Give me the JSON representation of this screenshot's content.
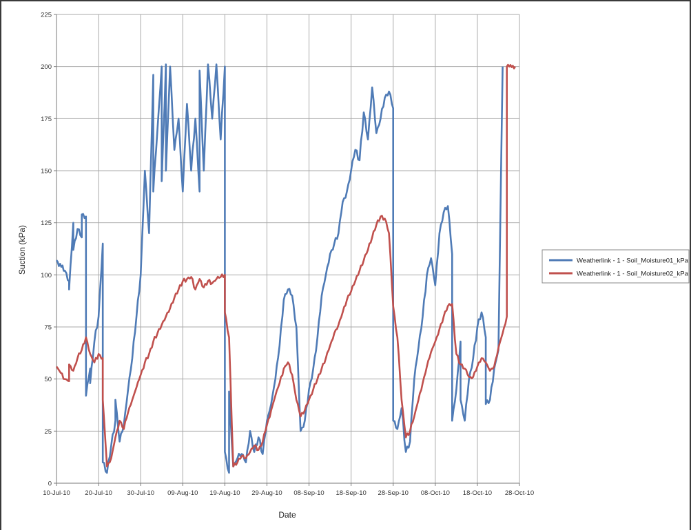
{
  "chart_data": {
    "type": "line",
    "xlabel": "Date",
    "ylabel": "Suction (kPa)",
    "x_ticks": [
      "10-Jul-10",
      "20-Jul-10",
      "30-Jul-10",
      "09-Aug-10",
      "19-Aug-10",
      "29-Aug-10",
      "08-Sep-10",
      "18-Sep-10",
      "28-Sep-10",
      "08-Oct-10",
      "18-Oct-10",
      "28-Oct-10"
    ],
    "xlim": [
      "2010-07-10",
      "2010-10-28"
    ],
    "y_ticks": [
      0,
      25,
      50,
      75,
      100,
      125,
      150,
      175,
      200,
      225
    ],
    "ylim": [
      0,
      225
    ],
    "grid": true,
    "legend_position": "right",
    "colors": {
      "series1": "#4f7bb6",
      "series2": "#c0504d",
      "grid": "#a8a8a8",
      "axis": "#7a7a7a"
    },
    "series": [
      {
        "name": "Weatherlink - 1 - Soil_Moisture01_kPa",
        "points": [
          [
            "2010-07-10",
            107
          ],
          [
            "2010-07-12",
            102
          ],
          [
            "2010-07-13",
            97
          ],
          [
            "2010-07-13",
            93
          ],
          [
            "2010-07-14",
            125
          ],
          [
            "2010-07-14",
            112
          ],
          [
            "2010-07-15",
            122
          ],
          [
            "2010-07-16",
            118
          ],
          [
            "2010-07-16",
            129
          ],
          [
            "2010-07-17",
            128
          ],
          [
            "2010-07-17",
            42
          ],
          [
            "2010-07-18",
            55
          ],
          [
            "2010-07-18",
            48
          ],
          [
            "2010-07-19",
            68
          ],
          [
            "2010-07-20",
            80
          ],
          [
            "2010-07-21",
            115
          ],
          [
            "2010-07-21",
            10
          ],
          [
            "2010-07-22",
            5
          ],
          [
            "2010-07-23",
            18
          ],
          [
            "2010-07-24",
            30
          ],
          [
            "2010-07-24",
            40
          ],
          [
            "2010-07-25",
            20
          ],
          [
            "2010-07-26",
            28
          ],
          [
            "2010-07-27",
            45
          ],
          [
            "2010-07-28",
            60
          ],
          [
            "2010-07-29",
            80
          ],
          [
            "2010-07-30",
            100
          ],
          [
            "2010-07-31",
            150
          ],
          [
            "2010-08-01",
            120
          ],
          [
            "2010-08-02",
            196
          ],
          [
            "2010-08-02",
            140
          ],
          [
            "2010-08-03",
            170
          ],
          [
            "2010-08-04",
            200
          ],
          [
            "2010-08-04",
            145
          ],
          [
            "2010-08-05",
            201
          ],
          [
            "2010-08-05",
            150
          ],
          [
            "2010-08-06",
            200
          ],
          [
            "2010-08-07",
            160
          ],
          [
            "2010-08-08",
            175
          ],
          [
            "2010-08-09",
            140
          ],
          [
            "2010-08-10",
            182
          ],
          [
            "2010-08-11",
            150
          ],
          [
            "2010-08-12",
            175
          ],
          [
            "2010-08-13",
            140
          ],
          [
            "2010-08-13",
            198
          ],
          [
            "2010-08-14",
            150
          ],
          [
            "2010-08-15",
            201
          ],
          [
            "2010-08-16",
            175
          ],
          [
            "2010-08-17",
            201
          ],
          [
            "2010-08-18",
            165
          ],
          [
            "2010-08-19",
            200
          ],
          [
            "2010-08-19",
            15
          ],
          [
            "2010-08-20",
            5
          ],
          [
            "2010-08-20",
            44
          ],
          [
            "2010-08-21",
            8
          ],
          [
            "2010-08-22",
            12
          ],
          [
            "2010-08-23",
            14
          ],
          [
            "2010-08-24",
            10
          ],
          [
            "2010-08-25",
            25
          ],
          [
            "2010-08-26",
            15
          ],
          [
            "2010-08-27",
            22
          ],
          [
            "2010-08-28",
            14
          ],
          [
            "2010-08-29",
            30
          ],
          [
            "2010-08-30",
            38
          ],
          [
            "2010-08-31",
            50
          ],
          [
            "2010-09-01",
            66
          ],
          [
            "2010-09-02",
            88
          ],
          [
            "2010-09-03",
            93
          ],
          [
            "2010-09-04",
            90
          ],
          [
            "2010-09-05",
            75
          ],
          [
            "2010-09-06",
            25
          ],
          [
            "2010-09-07",
            30
          ],
          [
            "2010-09-08",
            45
          ],
          [
            "2010-09-09",
            55
          ],
          [
            "2010-09-10",
            70
          ],
          [
            "2010-09-11",
            90
          ],
          [
            "2010-09-12",
            100
          ],
          [
            "2010-09-13",
            110
          ],
          [
            "2010-09-14",
            115
          ],
          [
            "2010-09-15",
            120
          ],
          [
            "2010-09-16",
            135
          ],
          [
            "2010-09-17",
            140
          ],
          [
            "2010-09-18",
            150
          ],
          [
            "2010-09-19",
            160
          ],
          [
            "2010-09-20",
            155
          ],
          [
            "2010-09-21",
            178
          ],
          [
            "2010-09-22",
            165
          ],
          [
            "2010-09-23",
            190
          ],
          [
            "2010-09-24",
            168
          ],
          [
            "2010-09-25",
            175
          ],
          [
            "2010-09-26",
            185
          ],
          [
            "2010-09-27",
            188
          ],
          [
            "2010-09-28",
            180
          ],
          [
            "2010-09-28",
            30
          ],
          [
            "2010-09-29",
            26
          ],
          [
            "2010-09-30",
            36
          ],
          [
            "2010-10-01",
            15
          ],
          [
            "2010-10-02",
            20
          ],
          [
            "2010-10-03",
            50
          ],
          [
            "2010-10-04",
            65
          ],
          [
            "2010-10-05",
            80
          ],
          [
            "2010-10-06",
            100
          ],
          [
            "2010-10-07",
            108
          ],
          [
            "2010-10-08",
            95
          ],
          [
            "2010-10-09",
            120
          ],
          [
            "2010-10-10",
            130
          ],
          [
            "2010-10-11",
            133
          ],
          [
            "2010-10-12",
            110
          ],
          [
            "2010-10-12",
            30
          ],
          [
            "2010-10-13",
            45
          ],
          [
            "2010-10-14",
            68
          ],
          [
            "2010-10-14",
            40
          ],
          [
            "2010-10-15",
            30
          ],
          [
            "2010-10-16",
            50
          ],
          [
            "2010-10-17",
            60
          ],
          [
            "2010-10-18",
            75
          ],
          [
            "2010-10-19",
            82
          ],
          [
            "2010-10-20",
            70
          ],
          [
            "2010-10-20",
            38
          ],
          [
            "2010-10-21",
            40
          ],
          [
            "2010-10-22",
            55
          ],
          [
            "2010-10-23",
            64
          ],
          [
            "2010-10-24",
            200
          ],
          [
            "2010-10-24",
            200
          ]
        ]
      },
      {
        "name": "Weatherlink - 1 - Soil_Moisture02_kPa",
        "points": [
          [
            "2010-07-10",
            56
          ],
          [
            "2010-07-11",
            53
          ],
          [
            "2010-07-12",
            50
          ],
          [
            "2010-07-13",
            49
          ],
          [
            "2010-07-13",
            57
          ],
          [
            "2010-07-14",
            54
          ],
          [
            "2010-07-15",
            60
          ],
          [
            "2010-07-16",
            64
          ],
          [
            "2010-07-17",
            70
          ],
          [
            "2010-07-18",
            62
          ],
          [
            "2010-07-19",
            58
          ],
          [
            "2010-07-20",
            62
          ],
          [
            "2010-07-21",
            60
          ],
          [
            "2010-07-21",
            40
          ],
          [
            "2010-07-22",
            8
          ],
          [
            "2010-07-23",
            12
          ],
          [
            "2010-07-24",
            22
          ],
          [
            "2010-07-25",
            30
          ],
          [
            "2010-07-26",
            26
          ],
          [
            "2010-07-27",
            34
          ],
          [
            "2010-07-28",
            40
          ],
          [
            "2010-07-29",
            46
          ],
          [
            "2010-07-30",
            52
          ],
          [
            "2010-07-31",
            58
          ],
          [
            "2010-08-01",
            62
          ],
          [
            "2010-08-02",
            68
          ],
          [
            "2010-08-03",
            72
          ],
          [
            "2010-08-04",
            76
          ],
          [
            "2010-08-05",
            80
          ],
          [
            "2010-08-06",
            84
          ],
          [
            "2010-08-07",
            89
          ],
          [
            "2010-08-08",
            93
          ],
          [
            "2010-08-09",
            97
          ],
          [
            "2010-08-10",
            98
          ],
          [
            "2010-08-11",
            99
          ],
          [
            "2010-08-12",
            93
          ],
          [
            "2010-08-13",
            98
          ],
          [
            "2010-08-14",
            94
          ],
          [
            "2010-08-15",
            97
          ],
          [
            "2010-08-16",
            96
          ],
          [
            "2010-08-17",
            98
          ],
          [
            "2010-08-18",
            99
          ],
          [
            "2010-08-19",
            100
          ],
          [
            "2010-08-19",
            82
          ],
          [
            "2010-08-20",
            70
          ],
          [
            "2010-08-21",
            8
          ],
          [
            "2010-08-22",
            10
          ],
          [
            "2010-08-23",
            13
          ],
          [
            "2010-08-24",
            12
          ],
          [
            "2010-08-25",
            15
          ],
          [
            "2010-08-26",
            18
          ],
          [
            "2010-08-27",
            16
          ],
          [
            "2010-08-28",
            20
          ],
          [
            "2010-08-29",
            28
          ],
          [
            "2010-08-30",
            35
          ],
          [
            "2010-08-31",
            42
          ],
          [
            "2010-09-01",
            48
          ],
          [
            "2010-09-02",
            55
          ],
          [
            "2010-09-03",
            58
          ],
          [
            "2010-09-04",
            52
          ],
          [
            "2010-09-05",
            40
          ],
          [
            "2010-09-06",
            32
          ],
          [
            "2010-09-07",
            35
          ],
          [
            "2010-09-08",
            40
          ],
          [
            "2010-09-09",
            45
          ],
          [
            "2010-09-10",
            50
          ],
          [
            "2010-09-11",
            55
          ],
          [
            "2010-09-12",
            60
          ],
          [
            "2010-09-13",
            66
          ],
          [
            "2010-09-14",
            72
          ],
          [
            "2010-09-15",
            76
          ],
          [
            "2010-09-16",
            82
          ],
          [
            "2010-09-17",
            88
          ],
          [
            "2010-09-18",
            92
          ],
          [
            "2010-09-19",
            97
          ],
          [
            "2010-09-20",
            102
          ],
          [
            "2010-09-21",
            107
          ],
          [
            "2010-09-22",
            112
          ],
          [
            "2010-09-23",
            118
          ],
          [
            "2010-09-24",
            124
          ],
          [
            "2010-09-25",
            128
          ],
          [
            "2010-09-26",
            127
          ],
          [
            "2010-09-27",
            120
          ],
          [
            "2010-09-28",
            85
          ],
          [
            "2010-09-29",
            70
          ],
          [
            "2010-09-30",
            40
          ],
          [
            "2010-10-01",
            22
          ],
          [
            "2010-10-02",
            25
          ],
          [
            "2010-10-03",
            32
          ],
          [
            "2010-10-04",
            40
          ],
          [
            "2010-10-05",
            48
          ],
          [
            "2010-10-06",
            56
          ],
          [
            "2010-10-07",
            63
          ],
          [
            "2010-10-08",
            68
          ],
          [
            "2010-10-09",
            74
          ],
          [
            "2010-10-10",
            80
          ],
          [
            "2010-10-11",
            85
          ],
          [
            "2010-10-12",
            86
          ],
          [
            "2010-10-13",
            62
          ],
          [
            "2010-10-14",
            57
          ],
          [
            "2010-10-15",
            55
          ],
          [
            "2010-10-16",
            51
          ],
          [
            "2010-10-17",
            51
          ],
          [
            "2010-10-18",
            56
          ],
          [
            "2010-10-19",
            60
          ],
          [
            "2010-10-20",
            58
          ],
          [
            "2010-10-21",
            54
          ],
          [
            "2010-10-22",
            56
          ],
          [
            "2010-10-23",
            65
          ],
          [
            "2010-10-24",
            72
          ],
          [
            "2010-10-25",
            80
          ],
          [
            "2010-10-25",
            200
          ],
          [
            "2010-10-27",
            200
          ]
        ]
      }
    ]
  }
}
